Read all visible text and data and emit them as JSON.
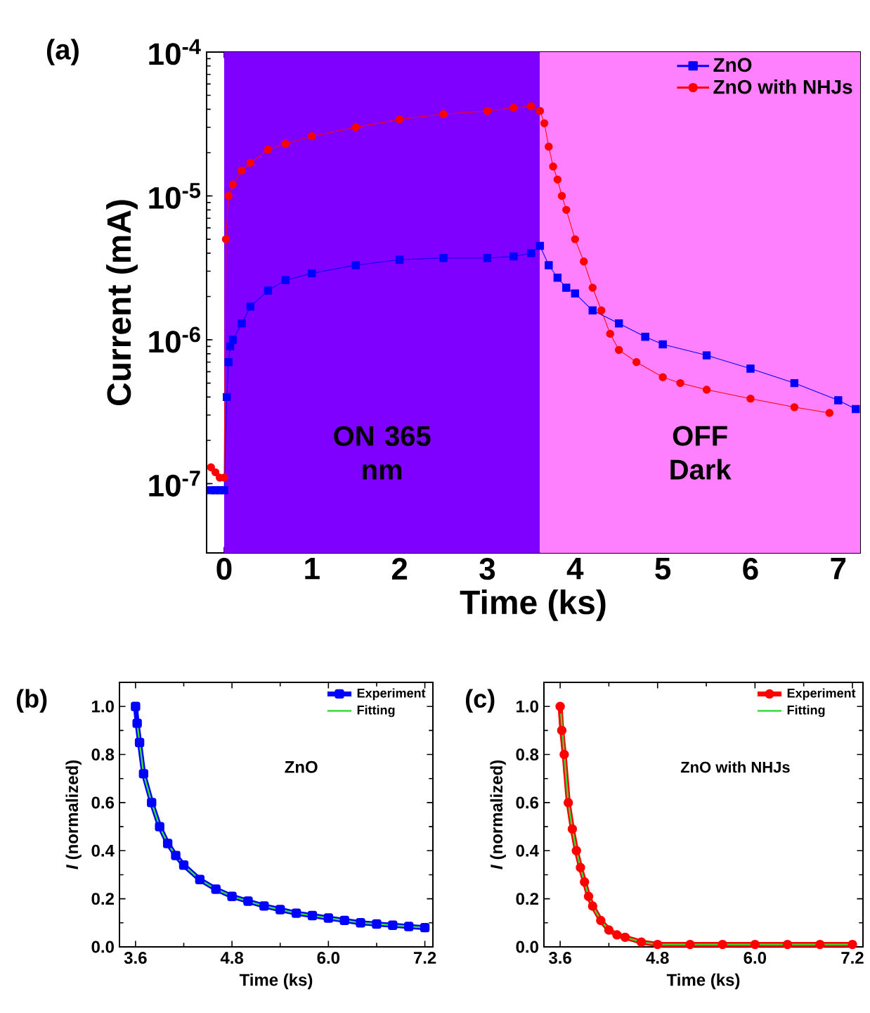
{
  "chart_data": [
    {
      "type": "line",
      "xlabel": "Time (ks)",
      "ylabel": "Current (mA)",
      "log": "y",
      "legend": "top right",
      "xlim": [
        -0.2,
        7.25
      ],
      "xticks": [
        0,
        1,
        2,
        3,
        4,
        5,
        6,
        7
      ],
      "ylim": [
        3.3e-08,
        0.0001
      ],
      "yticks": [
        {
          "value": 1e-07,
          "label": "10$^{-7}$"
        },
        {
          "value": 1e-06,
          "label": "10$^{-6}$"
        },
        {
          "value": 1e-05,
          "label": "10$^{-5}$"
        },
        {
          "value": 0.0001,
          "label": "10$^{-4}$"
        }
      ],
      "bands": [
        {
          "axis": "x",
          "from": 0,
          "to": 3.6,
          "label": "ON 365 nm",
          "color": "#8000ff"
        },
        {
          "axis": "x",
          "from": 3.6,
          "to": 7.25,
          "label": "OFF Dark",
          "color": "#ff80ff"
        }
      ],
      "annotations": [
        "(a)"
      ],
      "series": [
        {
          "name": "ZnO",
          "color": "#0000ff",
          "marker": "square",
          "x": [
            -0.15,
            -0.1,
            -0.05,
            0,
            0.03,
            0.05,
            0.07,
            0.1,
            0.2,
            0.3,
            0.5,
            0.7,
            1.0,
            1.5,
            2.0,
            2.5,
            3.0,
            3.3,
            3.5,
            3.6,
            3.7,
            3.8,
            3.9,
            4.0,
            4.2,
            4.5,
            4.8,
            5.0,
            5.5,
            6.0,
            6.5,
            7.0,
            7.2
          ],
          "values": [
            9e-08,
            9e-08,
            9e-08,
            9e-08,
            4e-07,
            7e-07,
            9e-07,
            1e-06,
            1.3e-06,
            1.7e-06,
            2.2e-06,
            2.6e-06,
            2.9e-06,
            3.3e-06,
            3.6e-06,
            3.7e-06,
            3.7e-06,
            3.8e-06,
            4e-06,
            4.5e-06,
            3.3e-06,
            2.7e-06,
            2.3e-06,
            2.1e-06,
            1.6e-06,
            1.3e-06,
            1.05e-06,
            9.3e-07,
            7.8e-07,
            6.3e-07,
            5e-07,
            3.8e-07,
            3.3e-07
          ]
        },
        {
          "name": "ZnO with NHJs",
          "color": "#ff0000",
          "marker": "circle",
          "x": [
            -0.15,
            -0.1,
            -0.05,
            0,
            0.02,
            0.05,
            0.1,
            0.2,
            0.3,
            0.5,
            0.7,
            1.0,
            1.5,
            2.0,
            2.5,
            3.0,
            3.3,
            3.5,
            3.6,
            3.65,
            3.7,
            3.75,
            3.8,
            3.85,
            3.9,
            4.0,
            4.1,
            4.2,
            4.3,
            4.4,
            4.5,
            4.7,
            5.0,
            5.2,
            5.5,
            6.0,
            6.5,
            6.9
          ],
          "values": [
            1.3e-07,
            1.2e-07,
            1.1e-07,
            1.1e-07,
            5e-06,
            1e-05,
            1.2e-05,
            1.5e-05,
            1.7e-05,
            2.1e-05,
            2.3e-05,
            2.6e-05,
            3e-05,
            3.4e-05,
            3.7e-05,
            3.9e-05,
            4.1e-05,
            4.2e-05,
            3.9e-05,
            3.2e-05,
            2.2e-05,
            1.6e-05,
            1.3e-05,
            1e-05,
            8e-06,
            5e-06,
            3.5e-06,
            2.3e-06,
            1.6e-06,
            1.1e-06,
            8.5e-07,
            7e-07,
            5.5e-07,
            5e-07,
            4.5e-07,
            3.9e-07,
            3.4e-07,
            3.1e-07
          ]
        }
      ]
    },
    {
      "type": "line",
      "xlabel": "Time (ks)",
      "ylabel": "*I* (normalized)",
      "legend": "top right",
      "xlim": [
        3.4,
        7.3
      ],
      "xticks": [
        {
          "value": 3.6,
          "label": "3.6"
        },
        {
          "value": 4.8,
          "label": "4.8"
        },
        {
          "value": 6.0,
          "label": "6.0"
        },
        {
          "value": 7.2,
          "label": "7.2"
        }
      ],
      "ylim": [
        0,
        1.1
      ],
      "yticks": [
        {
          "value": 0,
          "label": "0.0"
        },
        {
          "value": 0.2,
          "label": "0.2"
        },
        {
          "value": 0.4,
          "label": "0.4"
        },
        {
          "value": 0.6,
          "label": "0.6"
        },
        {
          "value": 0.8,
          "label": "0.8"
        },
        {
          "value": 1.0,
          "label": "1.0"
        }
      ],
      "annotations": [
        "(b)",
        "ZnO"
      ],
      "series": [
        {
          "name": "Experiment",
          "color": "#0000ff",
          "marker": "square",
          "x": [
            3.6,
            3.62,
            3.65,
            3.7,
            3.8,
            3.9,
            4.0,
            4.1,
            4.2,
            4.4,
            4.6,
            4.8,
            5.0,
            5.2,
            5.4,
            5.6,
            5.8,
            6.0,
            6.2,
            6.4,
            6.6,
            6.8,
            7.0,
            7.2
          ],
          "values": [
            1.0,
            0.93,
            0.85,
            0.72,
            0.6,
            0.5,
            0.43,
            0.38,
            0.34,
            0.28,
            0.24,
            0.21,
            0.19,
            0.17,
            0.155,
            0.14,
            0.13,
            0.12,
            0.11,
            0.1,
            0.095,
            0.09,
            0.085,
            0.08
          ]
        },
        {
          "name": "Fitting",
          "color": "#33dd33",
          "marker": "none",
          "x": [
            3.62,
            3.65,
            3.7,
            3.8,
            3.9,
            4.0,
            4.1,
            4.2,
            4.4,
            4.6,
            4.8,
            5.0,
            5.2,
            5.4,
            5.6,
            5.8,
            6.0,
            6.2,
            6.4,
            6.6,
            6.8,
            7.0,
            7.2
          ],
          "values": [
            0.93,
            0.85,
            0.72,
            0.6,
            0.5,
            0.43,
            0.38,
            0.34,
            0.28,
            0.24,
            0.21,
            0.19,
            0.17,
            0.155,
            0.14,
            0.13,
            0.12,
            0.11,
            0.1,
            0.095,
            0.09,
            0.085,
            0.08
          ]
        }
      ]
    },
    {
      "type": "line",
      "xlabel": "Time (ks)",
      "ylabel": "*I* (normalized)",
      "legend": "top right",
      "xlim": [
        3.4,
        7.33
      ],
      "xticks": [
        {
          "value": 3.6,
          "label": "3.6"
        },
        {
          "value": 4.8,
          "label": "4.8"
        },
        {
          "value": 6.0,
          "label": "6.0"
        },
        {
          "value": 7.2,
          "label": "7.2"
        }
      ],
      "ylim": [
        0,
        1.1
      ],
      "yticks": [
        {
          "value": 0,
          "label": "0.0"
        },
        {
          "value": 0.2,
          "label": "0.2"
        },
        {
          "value": 0.4,
          "label": "0.4"
        },
        {
          "value": 0.6,
          "label": "0.6"
        },
        {
          "value": 0.8,
          "label": "0.8"
        },
        {
          "value": 1.0,
          "label": "1.0"
        }
      ],
      "annotations": [
        "(c)",
        "ZnO with NHJs"
      ],
      "series": [
        {
          "name": "Experiment",
          "color": "#ff0000",
          "marker": "circle",
          "x": [
            3.6,
            3.62,
            3.65,
            3.7,
            3.75,
            3.8,
            3.85,
            3.9,
            3.95,
            4.0,
            4.1,
            4.2,
            4.3,
            4.4,
            4.6,
            4.8,
            5.2,
            5.6,
            6.0,
            6.4,
            6.8,
            7.2
          ],
          "values": [
            1.0,
            0.9,
            0.8,
            0.6,
            0.49,
            0.4,
            0.33,
            0.27,
            0.21,
            0.17,
            0.11,
            0.07,
            0.05,
            0.04,
            0.02,
            0.01,
            0.01,
            0.01,
            0.01,
            0.01,
            0.01,
            0.01
          ]
        },
        {
          "name": "Fitting",
          "color": "#33dd33",
          "marker": "none",
          "x": [
            3.61,
            3.65,
            3.7,
            3.75,
            3.8,
            3.85,
            3.9,
            3.95,
            4.0,
            4.1,
            4.2,
            4.3,
            4.4,
            4.6,
            4.8,
            5.2,
            5.6,
            6.0,
            6.4,
            6.8,
            7.2
          ],
          "values": [
            0.97,
            0.8,
            0.6,
            0.49,
            0.4,
            0.33,
            0.27,
            0.21,
            0.17,
            0.11,
            0.07,
            0.05,
            0.04,
            0.02,
            0.01,
            0.01,
            0.01,
            0.01,
            0.01,
            0.01,
            0.01
          ]
        }
      ]
    }
  ]
}
